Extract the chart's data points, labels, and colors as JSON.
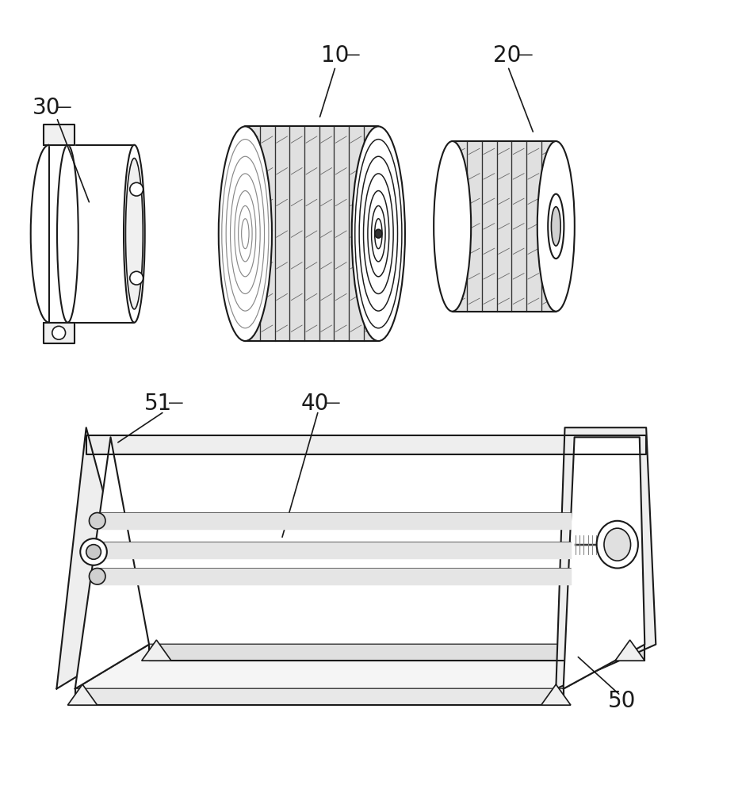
{
  "background_color": "#ffffff",
  "figure_width": 9.36,
  "figure_height": 10.0,
  "dpi": 100,
  "line_color": "#1a1a1a",
  "line_width": 1.5
}
